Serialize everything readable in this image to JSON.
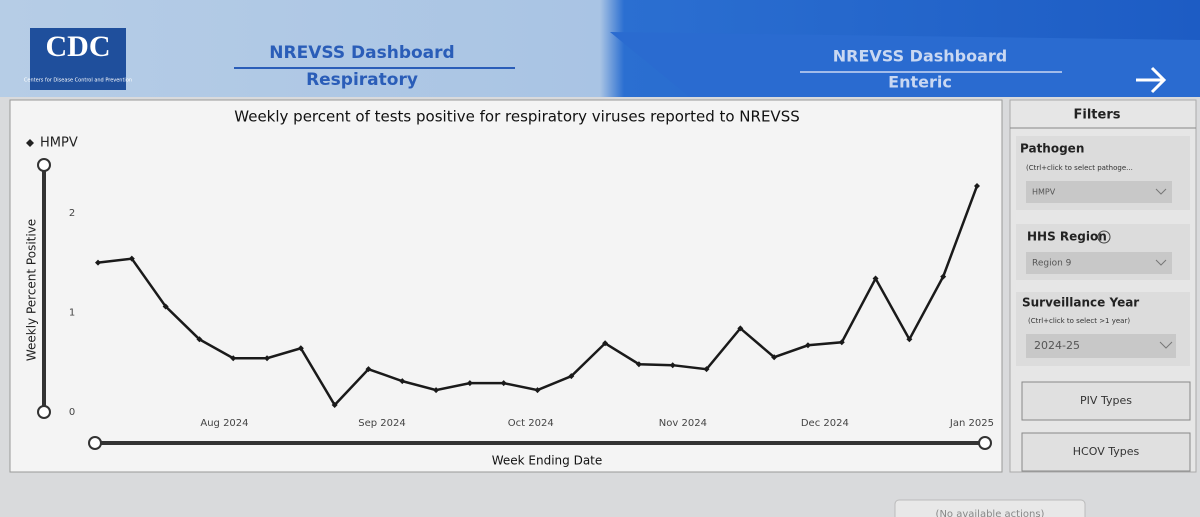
{
  "header": {
    "logo": "CDC",
    "logo_subtitle": "Centers for Disease Control and Prevention",
    "tabs": [
      {
        "title": "NREVSS Dashboard",
        "subtitle": "Respiratory"
      },
      {
        "title": "NREVSS Dashboard",
        "subtitle": "Enteric"
      }
    ]
  },
  "chart_data": {
    "type": "line",
    "title": "Weekly percent of tests positive for respiratory viruses reported to NREVSS",
    "x_label": "Week Ending Date",
    "y_label": "Weekly Percent Positive",
    "categories": [
      null,
      null,
      null,
      null,
      null,
      null,
      null,
      null,
      null,
      null,
      null,
      null,
      null,
      null,
      null,
      null,
      null,
      null,
      null,
      null,
      null,
      null,
      null,
      null,
      null,
      null,
      null
    ],
    "series": [
      {
        "name": "HMPV",
        "color": "#1a1a1a",
        "values": [
          1.5,
          1.54,
          1.06,
          0.73,
          0.54,
          0.54,
          0.64,
          0.07,
          0.43,
          0.31,
          0.22,
          0.29,
          0.29,
          0.22,
          0.36,
          0.69,
          0.48,
          0.47,
          0.43,
          0.84,
          0.55,
          0.67,
          0.7,
          1.34,
          0.73,
          1.36,
          2.27
        ]
      }
    ],
    "xticks": [
      {
        "value": 3.74,
        "label": "Aug 2024"
      },
      {
        "value": 8.4,
        "label": "Sep 2024"
      },
      {
        "value": 12.8,
        "label": "Oct 2024"
      },
      {
        "value": 17.3,
        "label": "Nov 2024"
      },
      {
        "value": 21.5,
        "label": "Dec 2024"
      },
      {
        "value": 25.85,
        "label": "Jan 2025"
      }
    ],
    "ylim": [
      0,
      2.4
    ],
    "yticks": [
      0,
      1,
      2
    ],
    "grid": false
  },
  "filters": {
    "title": "Filters",
    "pathogen": {
      "label": "Pathogen",
      "hint": "(Ctrl+click to select pathoge...",
      "selected": "HMPV"
    },
    "region": {
      "label": "HHS Region",
      "selected": "Region 9"
    },
    "year": {
      "label": "Surveillance Year",
      "hint": "(Ctrl+click to select >1 year)",
      "selected": "2024-25"
    },
    "buttons": [
      "PIV Types",
      "HCOV Types"
    ]
  },
  "footer": {
    "actions": "(No available actions)"
  }
}
